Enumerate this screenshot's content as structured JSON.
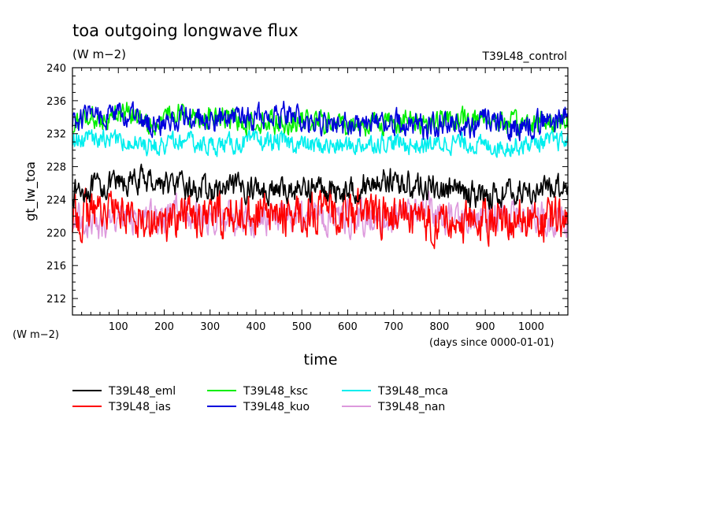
{
  "chart_data": {
    "type": "line",
    "title": "toa outgoing longwave flux",
    "units": "(W m−2)",
    "run_label": "T39L48_control",
    "ylabel": "gt_lw_toa",
    "ylabel_units": "(W m−2)",
    "xlabel": "time",
    "x_units": "(days since 0000-01-01)",
    "xlim": [
      0,
      1080
    ],
    "ylim": [
      210,
      240
    ],
    "x_ticks": [
      100,
      200,
      300,
      400,
      500,
      600,
      700,
      800,
      900,
      1000
    ],
    "y_ticks": [
      212,
      216,
      220,
      224,
      228,
      232,
      236,
      240
    ],
    "legend_placement": "bottom",
    "series": [
      {
        "name": "T39L48_eml",
        "color": "#000000",
        "mean": 225.4,
        "amp": 1.3,
        "x": [
          0,
          60,
          120,
          160,
          240,
          300,
          400,
          460,
          520,
          600,
          680,
          760,
          840,
          900,
          960,
          1020,
          1080
        ],
        "y": [
          225.0,
          225.5,
          226.0,
          226.5,
          225.5,
          225.0,
          225.5,
          225.0,
          225.5,
          225.0,
          226.5,
          225.5,
          225.0,
          224.5,
          225.0,
          225.0,
          226.0
        ]
      },
      {
        "name": "T39L48_ias",
        "color": "#ff0000",
        "mean": 222.2,
        "amp": 2.2,
        "x": [
          0,
          60,
          120,
          200,
          240,
          300,
          400,
          460,
          520,
          600,
          680,
          760,
          840,
          900,
          960,
          1020,
          1080
        ],
        "y": [
          221.5,
          223.0,
          222.5,
          221.0,
          222.5,
          222.0,
          222.5,
          222.0,
          222.5,
          222.5,
          222.0,
          221.5,
          221.0,
          221.5,
          222.0,
          221.0,
          222.0
        ]
      },
      {
        "name": "T39L48_ksc",
        "color": "#00ee00",
        "mean": 233.6,
        "amp": 1.2,
        "x": [
          0,
          60,
          120,
          180,
          240,
          300,
          400,
          460,
          520,
          600,
          680,
          760,
          840,
          900,
          960,
          1020,
          1080
        ],
        "y": [
          233.0,
          234.0,
          234.5,
          233.5,
          234.5,
          234.0,
          233.5,
          233.5,
          233.5,
          233.0,
          233.5,
          233.5,
          233.5,
          234.0,
          233.0,
          233.5,
          233.5
        ]
      },
      {
        "name": "T39L48_kuo",
        "color": "#0000dd",
        "mean": 233.4,
        "amp": 1.3,
        "x": [
          0,
          60,
          120,
          180,
          240,
          300,
          400,
          460,
          520,
          600,
          680,
          760,
          840,
          900,
          960,
          1020,
          1080
        ],
        "y": [
          233.5,
          234.5,
          234.0,
          233.0,
          234.0,
          233.5,
          234.0,
          234.5,
          233.0,
          233.0,
          233.5,
          233.0,
          233.0,
          233.5,
          232.5,
          233.5,
          234.0
        ]
      },
      {
        "name": "T39L48_mca",
        "color": "#00eeee",
        "mean": 231.0,
        "amp": 1.0,
        "x": [
          0,
          60,
          120,
          180,
          240,
          300,
          400,
          460,
          520,
          600,
          680,
          760,
          840,
          900,
          960,
          1020,
          1080
        ],
        "y": [
          231.0,
          231.5,
          231.0,
          230.5,
          231.0,
          230.5,
          231.0,
          231.0,
          230.5,
          230.5,
          231.0,
          230.5,
          231.0,
          230.5,
          230.5,
          231.0,
          231.0
        ]
      },
      {
        "name": "T39L48_nan",
        "color": "#dd99dd",
        "mean": 221.8,
        "amp": 1.7,
        "x": [
          0,
          60,
          120,
          180,
          240,
          300,
          400,
          460,
          520,
          600,
          680,
          760,
          840,
          900,
          960,
          1020,
          1080
        ],
        "y": [
          222.0,
          221.0,
          222.0,
          221.5,
          222.5,
          222.0,
          221.5,
          222.0,
          222.0,
          221.5,
          222.0,
          222.5,
          221.5,
          222.0,
          221.5,
          222.0,
          221.5
        ]
      }
    ]
  }
}
